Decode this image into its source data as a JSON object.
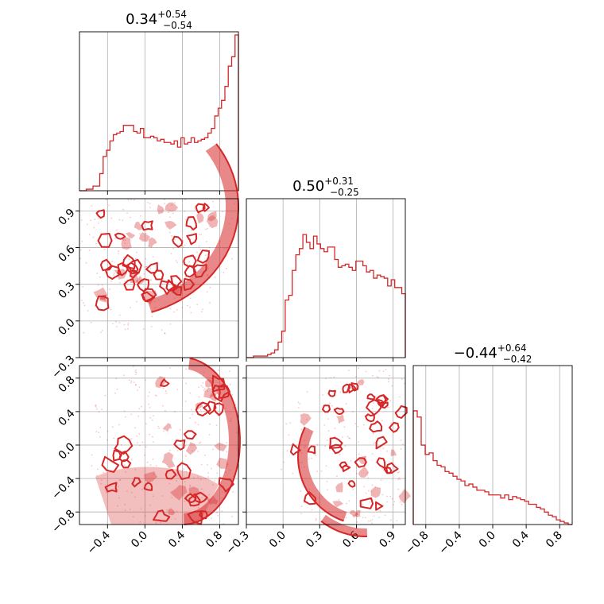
{
  "chart_data": {
    "type": "corner",
    "colors": {
      "accent": "#d62728"
    },
    "params": [
      {
        "title_median": "0.34",
        "title_plus": "+0.54",
        "title_minus": "−0.54",
        "range": [
          -0.7,
          1.0
        ],
        "ticks": [
          -0.4,
          0.0,
          0.4,
          0.8
        ],
        "tick_labels": [
          "−0.4",
          "0.0",
          "0.4",
          "0.8"
        ]
      },
      {
        "title_median": "0.50",
        "title_plus": "+0.31",
        "title_minus": "−0.25",
        "range": [
          -0.3,
          1.0
        ],
        "ticks": [
          -0.3,
          0.0,
          0.3,
          0.6,
          0.9
        ],
        "tick_labels": [
          "−0.3",
          "0.0",
          "0.3",
          "0.6",
          "0.9"
        ]
      },
      {
        "title_median": "−0.44",
        "title_plus": "+0.64",
        "title_minus": "−0.42",
        "range": [
          -0.95,
          0.95
        ],
        "ticks": [
          -0.8,
          -0.4,
          0.0,
          0.4,
          0.8
        ],
        "tick_labels": [
          "−0.8",
          "−0.4",
          "0.0",
          "0.4",
          "0.8"
        ]
      }
    ],
    "histograms": [
      [
        0.0,
        0.0,
        0.01,
        0.01,
        0.03,
        0.03,
        0.11,
        0.22,
        0.26,
        0.32,
        0.36,
        0.37,
        0.38,
        0.42,
        0.42,
        0.42,
        0.38,
        0.37,
        0.4,
        0.34,
        0.34,
        0.35,
        0.34,
        0.32,
        0.33,
        0.31,
        0.31,
        0.3,
        0.32,
        0.28,
        0.34,
        0.3,
        0.31,
        0.34,
        0.31,
        0.32,
        0.33,
        0.34,
        0.37,
        0.4,
        0.48,
        0.53,
        0.58,
        0.67,
        0.8,
        0.86,
        1.0
      ],
      [
        0.0,
        0.0,
        0.01,
        0.01,
        0.01,
        0.01,
        0.02,
        0.03,
        0.05,
        0.1,
        0.17,
        0.37,
        0.4,
        0.56,
        0.66,
        0.7,
        0.79,
        0.74,
        0.7,
        0.78,
        0.73,
        0.7,
        0.68,
        0.71,
        0.71,
        0.63,
        0.58,
        0.59,
        0.6,
        0.58,
        0.56,
        0.62,
        0.62,
        0.59,
        0.55,
        0.56,
        0.51,
        0.53,
        0.52,
        0.51,
        0.46,
        0.5,
        0.45,
        0.45,
        0.41
      ],
      [
        0.73,
        0.69,
        0.51,
        0.45,
        0.46,
        0.41,
        0.38,
        0.37,
        0.34,
        0.33,
        0.31,
        0.29,
        0.28,
        0.25,
        0.26,
        0.24,
        0.22,
        0.22,
        0.21,
        0.19,
        0.19,
        0.19,
        0.17,
        0.19,
        0.16,
        0.18,
        0.17,
        0.16,
        0.15,
        0.13,
        0.13,
        0.11,
        0.1,
        0.08,
        0.06,
        0.05,
        0.03,
        0.02,
        0.01,
        0.0
      ]
    ]
  }
}
